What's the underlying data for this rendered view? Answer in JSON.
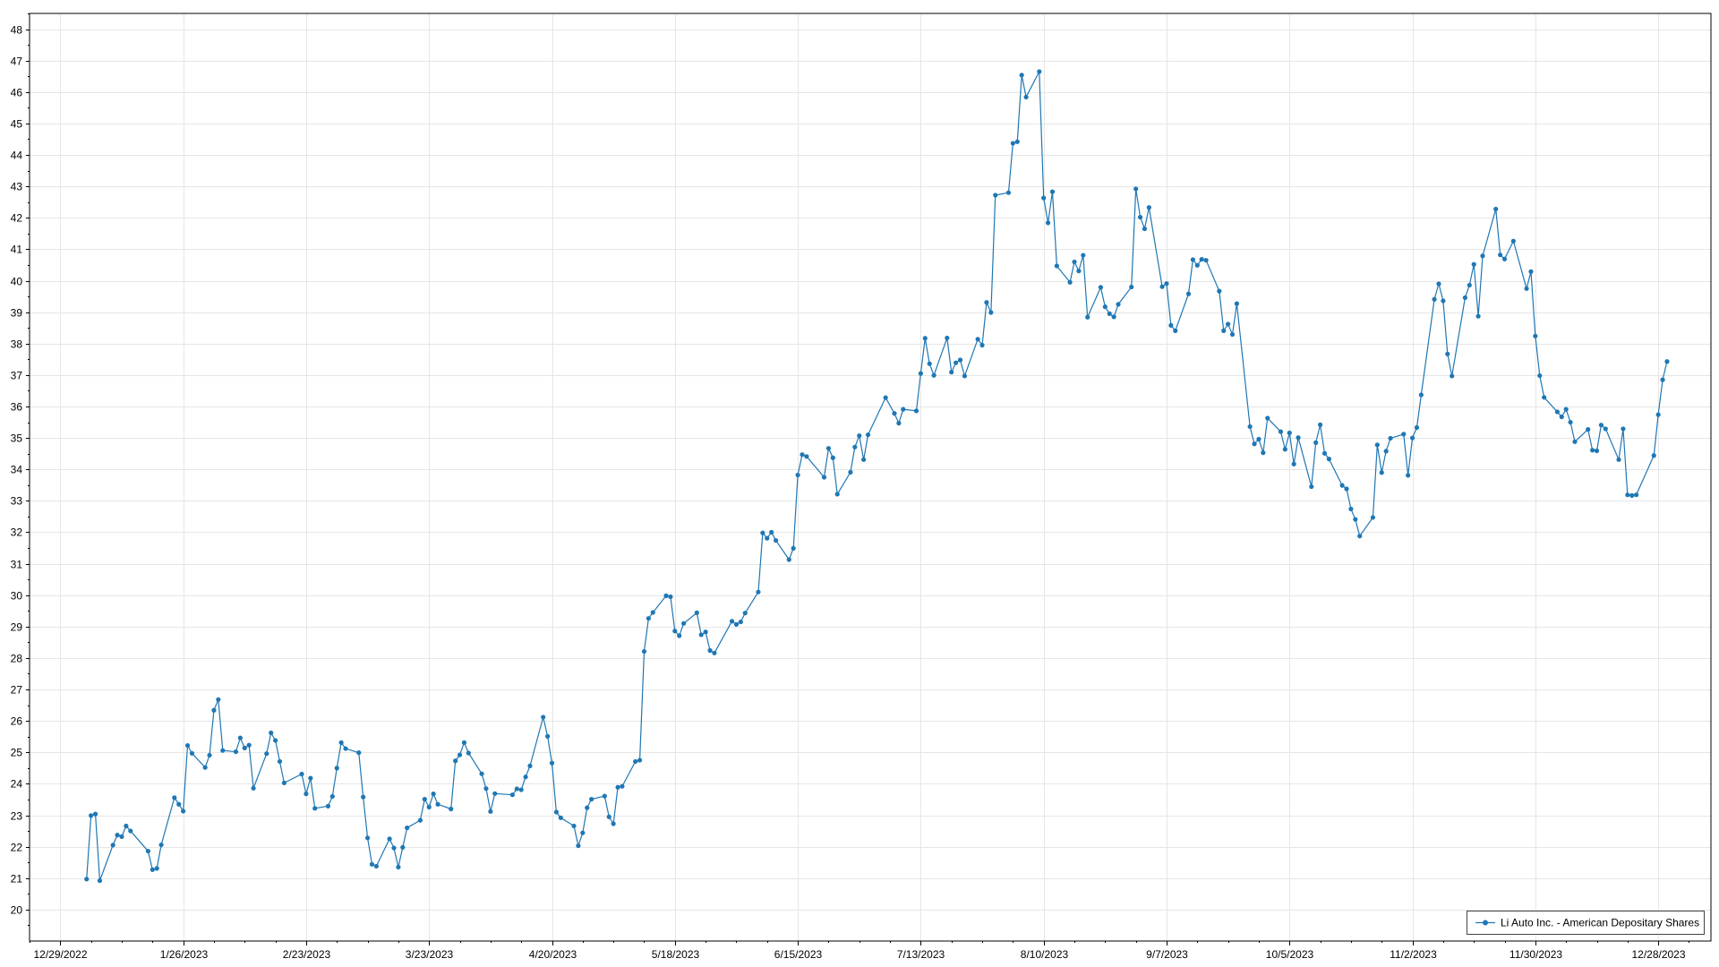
{
  "chart_data": {
    "type": "line",
    "title": "",
    "xlabel": "",
    "ylabel": "",
    "x_axis": {
      "type": "date",
      "range": [
        "2022-12-22",
        "2024-01-09"
      ],
      "ticks": [
        "2022-12-29",
        "2023-01-26",
        "2023-02-23",
        "2023-03-23",
        "2023-04-20",
        "2023-05-18",
        "2023-06-15",
        "2023-07-13",
        "2023-08-10",
        "2023-09-07",
        "2023-10-05",
        "2023-11-02",
        "2023-11-30",
        "2023-12-28"
      ],
      "tick_labels": [
        "12/29/2022",
        "1/26/2023",
        "2/23/2023",
        "3/23/2023",
        "4/20/2023",
        "5/18/2023",
        "6/15/2023",
        "7/13/2023",
        "8/10/2023",
        "9/7/2023",
        "10/5/2023",
        "11/2/2023",
        "11/30/2023",
        "12/28/2023"
      ]
    },
    "y_axis": {
      "range": [
        19.0,
        48.5
      ],
      "ticks": [
        20,
        21,
        22,
        23,
        24,
        25,
        26,
        27,
        28,
        29,
        30,
        31,
        32,
        33,
        34,
        35,
        36,
        37,
        38,
        39,
        40,
        41,
        42,
        43,
        44,
        45,
        46,
        47,
        48
      ]
    },
    "grid": true,
    "legend": {
      "position": "bottom-right"
    },
    "colors": {
      "series": "#1f77b4",
      "grid": "#e6e6e6",
      "axis": "#000000"
    },
    "series": [
      {
        "name": "Li Auto Inc. - American Depositary Shares",
        "marker": "circle",
        "points": [
          [
            "2023-01-04",
            20.97
          ],
          [
            "2023-01-05",
            22.99
          ],
          [
            "2023-01-06",
            23.04
          ],
          [
            "2023-01-07",
            20.92
          ],
          [
            "2023-01-10",
            22.05
          ],
          [
            "2023-01-11",
            22.37
          ],
          [
            "2023-01-12",
            22.32
          ],
          [
            "2023-01-13",
            22.66
          ],
          [
            "2023-01-14",
            22.5
          ],
          [
            "2023-01-18",
            21.86
          ],
          [
            "2023-01-19",
            21.27
          ],
          [
            "2023-01-20",
            21.31
          ],
          [
            "2023-01-21",
            22.06
          ],
          [
            "2023-01-24",
            23.56
          ],
          [
            "2023-01-25",
            23.35
          ],
          [
            "2023-01-26",
            23.13
          ],
          [
            "2023-01-27",
            25.22
          ],
          [
            "2023-01-28",
            24.97
          ],
          [
            "2023-01-31",
            24.52
          ],
          [
            "2023-02-01",
            24.91
          ],
          [
            "2023-02-02",
            26.34
          ],
          [
            "2023-02-03",
            26.68
          ],
          [
            "2023-02-04",
            25.06
          ],
          [
            "2023-02-07",
            25.02
          ],
          [
            "2023-02-08",
            25.46
          ],
          [
            "2023-02-09",
            25.14
          ],
          [
            "2023-02-10",
            25.23
          ],
          [
            "2023-02-11",
            23.86
          ],
          [
            "2023-02-14",
            24.96
          ],
          [
            "2023-02-15",
            25.62
          ],
          [
            "2023-02-16",
            25.38
          ],
          [
            "2023-02-17",
            24.71
          ],
          [
            "2023-02-18",
            24.03
          ],
          [
            "2023-02-22",
            24.31
          ],
          [
            "2023-02-23",
            23.68
          ],
          [
            "2023-02-24",
            24.18
          ],
          [
            "2023-02-25",
            23.22
          ],
          [
            "2023-02-28",
            23.29
          ],
          [
            "2023-03-01",
            23.6
          ],
          [
            "2023-03-02",
            24.5
          ],
          [
            "2023-03-03",
            25.31
          ],
          [
            "2023-03-04",
            25.12
          ],
          [
            "2023-03-07",
            24.99
          ],
          [
            "2023-03-08",
            23.58
          ],
          [
            "2023-03-09",
            22.28
          ],
          [
            "2023-03-10",
            21.44
          ],
          [
            "2023-03-11",
            21.38
          ],
          [
            "2023-03-14",
            22.25
          ],
          [
            "2023-03-15",
            21.96
          ],
          [
            "2023-03-16",
            21.35
          ],
          [
            "2023-03-17",
            21.98
          ],
          [
            "2023-03-18",
            22.6
          ],
          [
            "2023-03-21",
            22.84
          ],
          [
            "2023-03-22",
            23.51
          ],
          [
            "2023-03-23",
            23.26
          ],
          [
            "2023-03-24",
            23.68
          ],
          [
            "2023-03-25",
            23.35
          ],
          [
            "2023-03-28",
            23.2
          ],
          [
            "2023-03-29",
            24.73
          ],
          [
            "2023-03-30",
            24.92
          ],
          [
            "2023-03-31",
            25.31
          ],
          [
            "2023-04-01",
            24.98
          ],
          [
            "2023-04-04",
            24.32
          ],
          [
            "2023-04-05",
            23.85
          ],
          [
            "2023-04-06",
            23.12
          ],
          [
            "2023-04-07",
            23.69
          ],
          [
            "2023-04-11",
            23.65
          ],
          [
            "2023-04-12",
            23.84
          ],
          [
            "2023-04-13",
            23.81
          ],
          [
            "2023-04-14",
            24.22
          ],
          [
            "2023-04-15",
            24.57
          ],
          [
            "2023-04-18",
            26.12
          ],
          [
            "2023-04-19",
            25.51
          ],
          [
            "2023-04-20",
            24.66
          ],
          [
            "2023-04-21",
            23.1
          ],
          [
            "2023-04-22",
            22.92
          ],
          [
            "2023-04-25",
            22.66
          ],
          [
            "2023-04-26",
            22.03
          ],
          [
            "2023-04-27",
            22.44
          ],
          [
            "2023-04-28",
            23.24
          ],
          [
            "2023-04-29",
            23.51
          ],
          [
            "2023-05-02",
            23.61
          ],
          [
            "2023-05-03",
            22.95
          ],
          [
            "2023-05-04",
            22.73
          ],
          [
            "2023-05-05",
            23.89
          ],
          [
            "2023-05-06",
            23.92
          ],
          [
            "2023-05-09",
            24.71
          ],
          [
            "2023-05-10",
            24.75
          ],
          [
            "2023-05-11",
            28.21
          ],
          [
            "2023-05-12",
            29.26
          ],
          [
            "2023-05-13",
            29.45
          ],
          [
            "2023-05-16",
            29.98
          ],
          [
            "2023-05-17",
            29.95
          ],
          [
            "2023-05-18",
            28.86
          ],
          [
            "2023-05-19",
            28.71
          ],
          [
            "2023-05-20",
            29.1
          ],
          [
            "2023-05-23",
            29.44
          ],
          [
            "2023-05-24",
            28.74
          ],
          [
            "2023-05-25",
            28.83
          ],
          [
            "2023-05-26",
            28.24
          ],
          [
            "2023-05-27",
            28.16
          ],
          [
            "2023-05-31",
            29.17
          ],
          [
            "2023-06-01",
            29.07
          ],
          [
            "2023-06-02",
            29.15
          ],
          [
            "2023-06-03",
            29.43
          ],
          [
            "2023-06-06",
            30.1
          ],
          [
            "2023-06-07",
            31.98
          ],
          [
            "2023-06-08",
            31.81
          ],
          [
            "2023-06-09",
            32.0
          ],
          [
            "2023-06-10",
            31.74
          ],
          [
            "2023-06-13",
            31.13
          ],
          [
            "2023-06-14",
            31.49
          ],
          [
            "2023-06-15",
            33.82
          ],
          [
            "2023-06-16",
            34.47
          ],
          [
            "2023-06-17",
            34.41
          ],
          [
            "2023-06-21",
            33.75
          ],
          [
            "2023-06-22",
            34.67
          ],
          [
            "2023-06-23",
            34.37
          ],
          [
            "2023-06-24",
            33.21
          ],
          [
            "2023-06-27",
            33.91
          ],
          [
            "2023-06-28",
            34.71
          ],
          [
            "2023-06-29",
            35.07
          ],
          [
            "2023-06-30",
            34.31
          ],
          [
            "2023-07-01",
            35.1
          ],
          [
            "2023-07-05",
            36.28
          ],
          [
            "2023-07-07",
            35.78
          ],
          [
            "2023-07-08",
            35.47
          ],
          [
            "2023-07-09",
            35.91
          ],
          [
            "2023-07-12",
            35.86
          ],
          [
            "2023-07-13",
            37.05
          ],
          [
            "2023-07-14",
            38.17
          ],
          [
            "2023-07-15",
            37.36
          ],
          [
            "2023-07-16",
            36.99
          ],
          [
            "2023-07-19",
            38.18
          ],
          [
            "2023-07-20",
            37.09
          ],
          [
            "2023-07-21",
            37.39
          ],
          [
            "2023-07-22",
            37.48
          ],
          [
            "2023-07-23",
            36.97
          ],
          [
            "2023-07-26",
            38.14
          ],
          [
            "2023-07-27",
            37.95
          ],
          [
            "2023-07-28",
            39.31
          ],
          [
            "2023-07-29",
            38.99
          ],
          [
            "2023-07-30",
            42.72
          ],
          [
            "2023-08-02",
            42.8
          ],
          [
            "2023-08-03",
            44.37
          ],
          [
            "2023-08-04",
            44.42
          ],
          [
            "2023-08-05",
            46.54
          ],
          [
            "2023-08-06",
            45.84
          ],
          [
            "2023-08-09",
            46.65
          ],
          [
            "2023-08-10",
            42.63
          ],
          [
            "2023-08-11",
            41.84
          ],
          [
            "2023-08-12",
            42.83
          ],
          [
            "2023-08-13",
            40.47
          ],
          [
            "2023-08-16",
            39.95
          ],
          [
            "2023-08-17",
            40.6
          ],
          [
            "2023-08-18",
            40.31
          ],
          [
            "2023-08-19",
            40.81
          ],
          [
            "2023-08-20",
            38.84
          ],
          [
            "2023-08-23",
            39.79
          ],
          [
            "2023-08-24",
            39.17
          ],
          [
            "2023-08-25",
            38.95
          ],
          [
            "2023-08-26",
            38.85
          ],
          [
            "2023-08-27",
            39.25
          ],
          [
            "2023-08-30",
            39.8
          ],
          [
            "2023-08-31",
            42.92
          ],
          [
            "2023-09-01",
            42.02
          ],
          [
            "2023-09-02",
            41.65
          ],
          [
            "2023-09-03",
            42.33
          ],
          [
            "2023-09-06",
            39.81
          ],
          [
            "2023-09-07",
            39.91
          ],
          [
            "2023-09-08",
            38.58
          ],
          [
            "2023-09-09",
            38.41
          ],
          [
            "2023-09-12",
            39.58
          ],
          [
            "2023-09-13",
            40.67
          ],
          [
            "2023-09-14",
            40.49
          ],
          [
            "2023-09-15",
            40.68
          ],
          [
            "2023-09-16",
            40.65
          ],
          [
            "2023-09-19",
            39.67
          ],
          [
            "2023-09-20",
            38.41
          ],
          [
            "2023-09-21",
            38.62
          ],
          [
            "2023-09-22",
            38.29
          ],
          [
            "2023-09-23",
            39.27
          ],
          [
            "2023-09-26",
            35.36
          ],
          [
            "2023-09-27",
            34.81
          ],
          [
            "2023-09-28",
            34.96
          ],
          [
            "2023-09-29",
            34.53
          ],
          [
            "2023-09-30",
            35.63
          ],
          [
            "2023-10-03",
            35.2
          ],
          [
            "2023-10-04",
            34.64
          ],
          [
            "2023-10-05",
            35.16
          ],
          [
            "2023-10-06",
            34.17
          ],
          [
            "2023-10-07",
            35.01
          ],
          [
            "2023-10-10",
            33.45
          ],
          [
            "2023-10-11",
            34.85
          ],
          [
            "2023-10-12",
            35.42
          ],
          [
            "2023-10-13",
            34.51
          ],
          [
            "2023-10-14",
            34.33
          ],
          [
            "2023-10-17",
            33.49
          ],
          [
            "2023-10-18",
            33.38
          ],
          [
            "2023-10-19",
            32.74
          ],
          [
            "2023-10-20",
            32.41
          ],
          [
            "2023-10-21",
            31.88
          ],
          [
            "2023-10-24",
            32.47
          ],
          [
            "2023-10-25",
            34.78
          ],
          [
            "2023-10-26",
            33.9
          ],
          [
            "2023-10-27",
            34.58
          ],
          [
            "2023-10-28",
            34.99
          ],
          [
            "2023-10-31",
            35.12
          ],
          [
            "2023-11-01",
            33.81
          ],
          [
            "2023-11-02",
            35.0
          ],
          [
            "2023-11-03",
            35.33
          ],
          [
            "2023-11-04",
            36.37
          ],
          [
            "2023-11-07",
            39.41
          ],
          [
            "2023-11-08",
            39.9
          ],
          [
            "2023-11-09",
            39.36
          ],
          [
            "2023-11-10",
            37.67
          ],
          [
            "2023-11-11",
            36.97
          ],
          [
            "2023-11-14",
            39.46
          ],
          [
            "2023-11-15",
            39.86
          ],
          [
            "2023-11-16",
            40.52
          ],
          [
            "2023-11-17",
            38.87
          ],
          [
            "2023-11-18",
            40.79
          ],
          [
            "2023-11-21",
            42.28
          ],
          [
            "2023-11-22",
            40.82
          ],
          [
            "2023-11-23",
            40.69
          ],
          [
            "2023-11-25",
            41.26
          ],
          [
            "2023-11-28",
            39.75
          ],
          [
            "2023-11-29",
            40.29
          ],
          [
            "2023-11-30",
            38.24
          ],
          [
            "2023-12-01",
            36.98
          ],
          [
            "2023-12-02",
            36.29
          ],
          [
            "2023-12-05",
            35.83
          ],
          [
            "2023-12-06",
            35.67
          ],
          [
            "2023-12-07",
            35.91
          ],
          [
            "2023-12-08",
            35.5
          ],
          [
            "2023-12-09",
            34.88
          ],
          [
            "2023-12-12",
            35.27
          ],
          [
            "2023-12-13",
            34.61
          ],
          [
            "2023-12-14",
            34.59
          ],
          [
            "2023-12-15",
            35.41
          ],
          [
            "2023-12-16",
            35.29
          ],
          [
            "2023-12-19",
            34.31
          ],
          [
            "2023-12-20",
            35.29
          ],
          [
            "2023-12-21",
            33.19
          ],
          [
            "2023-12-22",
            33.17
          ],
          [
            "2023-12-23",
            33.19
          ],
          [
            "2023-12-27",
            34.44
          ],
          [
            "2023-12-28",
            35.74
          ],
          [
            "2023-12-29",
            36.85
          ],
          [
            "2023-12-30",
            37.43
          ]
        ]
      }
    ]
  }
}
